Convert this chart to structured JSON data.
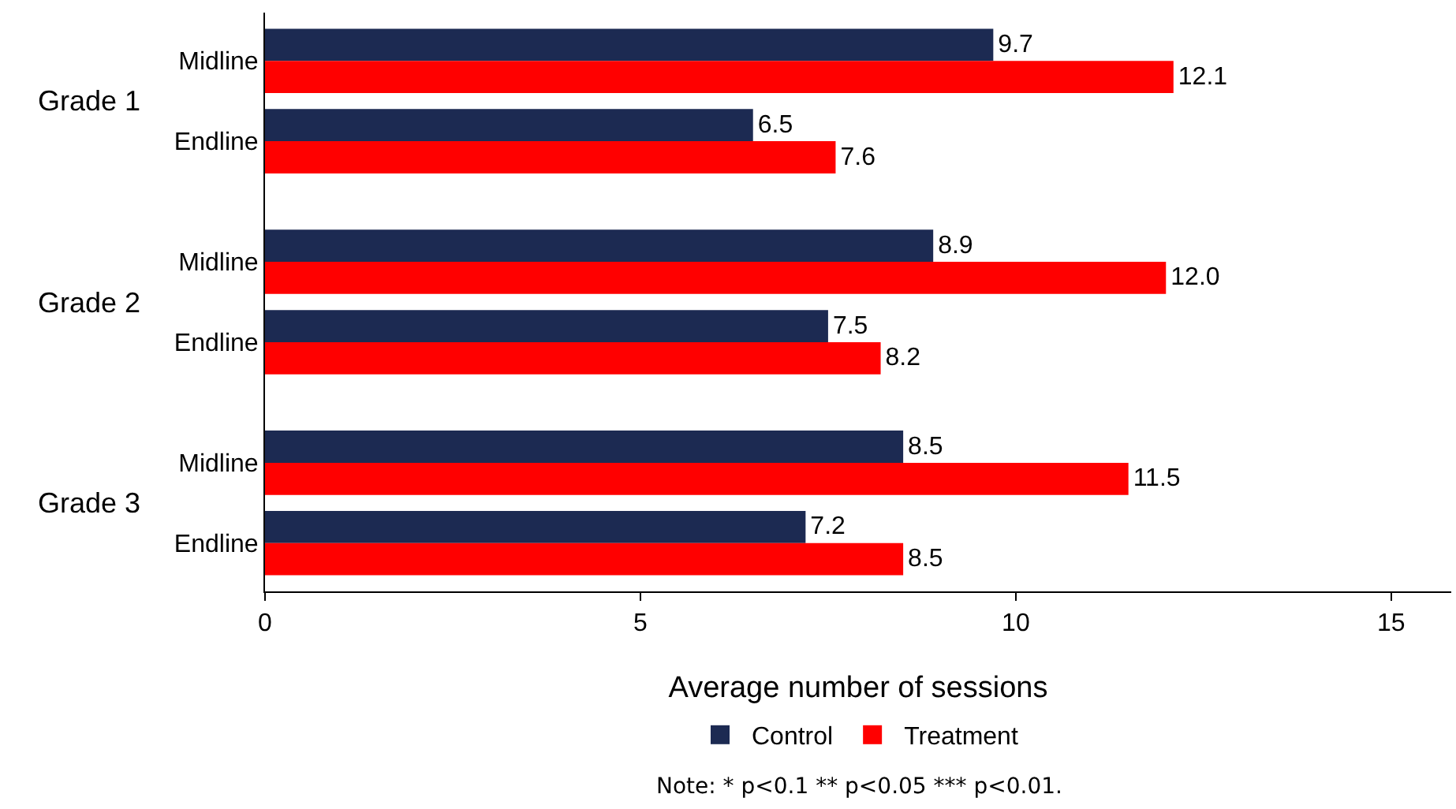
{
  "chart_data": {
    "type": "bar",
    "orientation": "horizontal",
    "categories": [
      "Midline",
      "Endline",
      "Midline",
      "Endline",
      "Midline",
      "Endline"
    ],
    "series": [
      {
        "name": "Control",
        "color": "#1c2a52",
        "values": [
          9.7,
          6.5,
          8.9,
          7.5,
          8.5,
          7.2
        ],
        "value_labels": [
          "9.7",
          "6.5",
          "8.9",
          "7.5",
          "8.5",
          "7.2"
        ]
      },
      {
        "name": "Treatment",
        "color": "#ff0000",
        "values": [
          12.1,
          7.6,
          12.0,
          8.2,
          11.5,
          8.5
        ],
        "value_labels": [
          "12.1",
          "7.6",
          "12.0",
          "8.2",
          "11.5",
          "8.5"
        ]
      }
    ],
    "xlabel": "Average number of sessions",
    "xlim": [
      0,
      15.8
    ],
    "xticks": [
      0,
      5,
      10,
      15
    ],
    "legend": "bottom",
    "annotations": [
      "Grade 1",
      "Grade 2",
      "Grade 3",
      "Note: * p<0.1 ** p<0.05 *** p<0.01."
    ]
  }
}
